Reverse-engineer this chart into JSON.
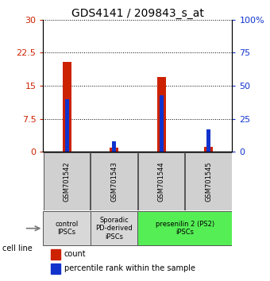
{
  "title": "GDS4141 / 209843_s_at",
  "samples": [
    "GSM701542",
    "GSM701543",
    "GSM701544",
    "GSM701545"
  ],
  "count_values": [
    20.5,
    1.0,
    17.0,
    1.2
  ],
  "percentile_values": [
    40,
    8,
    43,
    17
  ],
  "ylim_left": [
    0,
    30
  ],
  "ylim_right": [
    0,
    100
  ],
  "yticks_left": [
    0,
    7.5,
    15,
    22.5,
    30
  ],
  "yticks_right": [
    0,
    25,
    50,
    75,
    100
  ],
  "ytick_labels_left": [
    "0",
    "7.5",
    "15",
    "22.5",
    "30"
  ],
  "ytick_labels_right": [
    "0",
    "25",
    "50",
    "75",
    "100%"
  ],
  "count_color": "#cc2200",
  "percentile_color": "#1133cc",
  "count_bar_width": 0.18,
  "pct_bar_width": 0.08,
  "group_defs": [
    {
      "label": "control\nIPSCs",
      "color": "#d8d8d8",
      "xmin": -0.5,
      "xmax": 0.5
    },
    {
      "label": "Sporadic\nPD-derived\niPSCs",
      "color": "#d8d8d8",
      "xmin": 0.5,
      "xmax": 1.5
    },
    {
      "label": "presenilin 2 (PS2)\niPSCs",
      "color": "#55ee55",
      "xmin": 1.5,
      "xmax": 3.5
    }
  ],
  "sample_box_color": "#d0d0d0",
  "cell_line_label": "cell line",
  "legend_count": "count",
  "legend_percentile": "percentile rank within the sample",
  "title_fontsize": 10,
  "tick_fontsize": 8,
  "sample_fontsize": 6,
  "group_fontsize": 6,
  "legend_fontsize": 7
}
